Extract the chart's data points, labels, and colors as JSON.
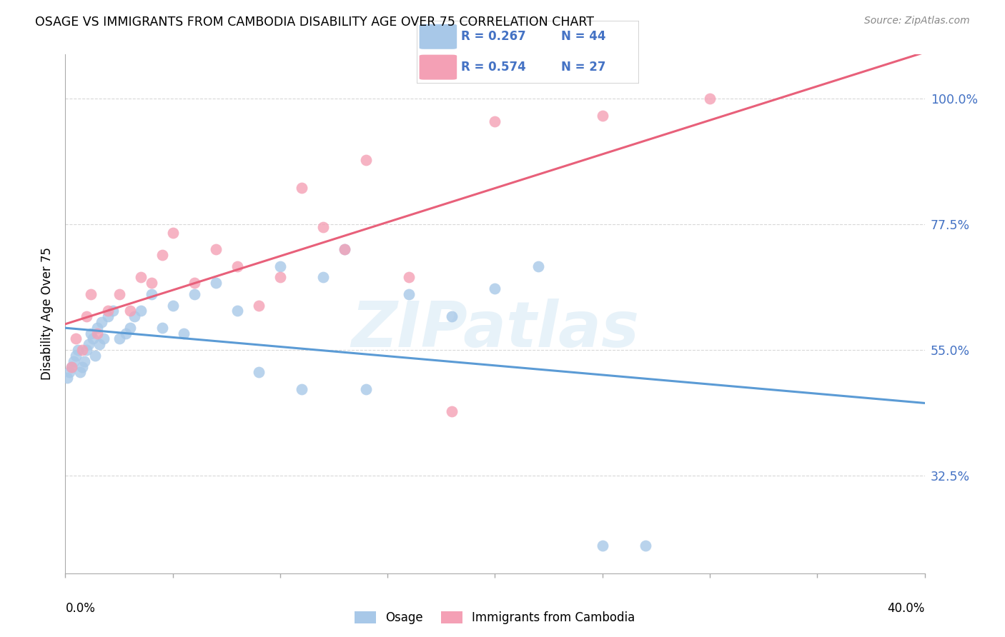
{
  "title": "OSAGE VS IMMIGRANTS FROM CAMBODIA DISABILITY AGE OVER 75 CORRELATION CHART",
  "source": "Source: ZipAtlas.com",
  "ylabel": "Disability Age Over 75",
  "r1": 0.267,
  "n1": 44,
  "r2": 0.574,
  "n2": 27,
  "color_blue": "#a8c8e8",
  "color_pink": "#f4a0b5",
  "line_blue": "#5b9bd5",
  "line_pink": "#e8607a",
  "text_blue": "#4472c4",
  "label_blue": "Osage",
  "label_pink": "Immigrants from Cambodia",
  "watermark": "ZIPatlas",
  "osage_x": [
    0.1,
    0.2,
    0.3,
    0.4,
    0.5,
    0.6,
    0.7,
    0.8,
    0.9,
    1.0,
    1.1,
    1.2,
    1.3,
    1.4,
    1.5,
    1.6,
    1.7,
    1.8,
    2.0,
    2.2,
    2.5,
    2.8,
    3.0,
    3.2,
    3.5,
    4.0,
    4.5,
    5.0,
    5.5,
    6.0,
    7.0,
    8.0,
    9.0,
    10.0,
    11.0,
    12.0,
    13.0,
    14.0,
    16.0,
    18.0,
    20.0,
    22.0,
    25.0,
    27.0
  ],
  "osage_y": [
    50,
    51,
    52,
    53,
    54,
    55,
    51,
    52,
    53,
    55,
    56,
    58,
    57,
    54,
    59,
    56,
    60,
    57,
    61,
    62,
    57,
    58,
    59,
    61,
    62,
    65,
    59,
    63,
    58,
    65,
    67,
    62,
    51,
    70,
    48,
    68,
    73,
    48,
    65,
    61,
    66,
    70,
    20,
    20
  ],
  "cambodia_x": [
    0.3,
    0.5,
    0.8,
    1.0,
    1.2,
    1.5,
    2.0,
    2.5,
    3.0,
    3.5,
    4.0,
    4.5,
    5.0,
    6.0,
    7.0,
    8.0,
    9.0,
    10.0,
    11.0,
    12.0,
    13.0,
    14.0,
    16.0,
    18.0,
    20.0,
    25.0,
    30.0
  ],
  "cambodia_y": [
    52,
    57,
    55,
    61,
    65,
    58,
    62,
    65,
    62,
    68,
    67,
    72,
    76,
    67,
    73,
    70,
    63,
    68,
    84,
    77,
    73,
    89,
    68,
    44,
    96,
    97,
    100
  ],
  "xmin": 0.0,
  "xmax": 40.0,
  "ymin": 15.0,
  "ymax": 108.0,
  "ytick_vals": [
    100.0,
    77.5,
    55.0,
    32.5
  ],
  "xtick_vals": [
    0,
    5,
    10,
    15,
    20,
    25,
    30,
    35,
    40
  ],
  "grid_color": "#d8d8d8",
  "background_color": "#ffffff"
}
